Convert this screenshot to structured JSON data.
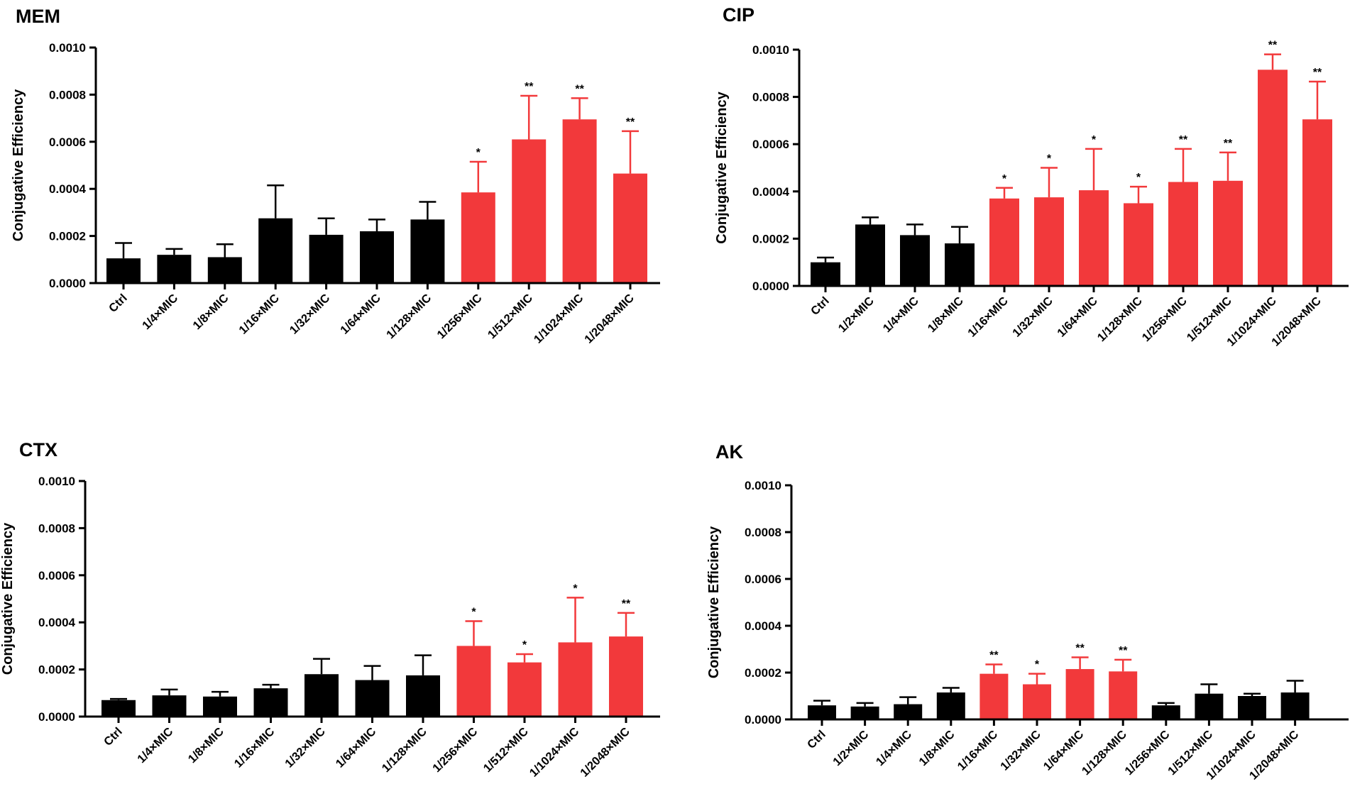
{
  "chart_data": [
    {
      "type": "bar",
      "title": "MEM",
      "xlabel": "",
      "ylabel": "Conjugative Efficiency",
      "ylim": [
        0,
        0.001
      ],
      "yticks": [
        "0.0000",
        "0.0002",
        "0.0004",
        "0.0006",
        "0.0008",
        "0.0010"
      ],
      "categories": [
        "Ctrl",
        "1/4×MIC",
        "1/8×MIC",
        "1/16×MIC",
        "1/32×MIC",
        "1/64×MIC",
        "1/128×MIC",
        "1/256×MIC",
        "1/512×MIC",
        "1/1024×MIC",
        "1/2048×MIC"
      ],
      "values": [
        0.000105,
        0.00012,
        0.00011,
        0.000275,
        0.000205,
        0.00022,
        0.00027,
        0.000385,
        0.00061,
        0.000695,
        0.000465
      ],
      "errors": [
        6.5e-05,
        2.5e-05,
        5.5e-05,
        0.00014,
        7e-05,
        5e-05,
        7.5e-05,
        0.00013,
        0.000185,
        9e-05,
        0.00018
      ],
      "significance": [
        "",
        "",
        "",
        "",
        "",
        "",
        "",
        "*",
        "**",
        "**",
        "**"
      ],
      "bar_colors": [
        "#000000",
        "#000000",
        "#000000",
        "#000000",
        "#000000",
        "#000000",
        "#000000",
        "#f2393b",
        "#f2393b",
        "#f2393b",
        "#f2393b"
      ]
    },
    {
      "type": "bar",
      "title": "CIP",
      "xlabel": "",
      "ylabel": "Conjugative Efficiency",
      "ylim": [
        0,
        0.001
      ],
      "yticks": [
        "0.0000",
        "0.0002",
        "0.0004",
        "0.0006",
        "0.0008",
        "0.0010"
      ],
      "categories": [
        "Ctrl",
        "1/2×MIC",
        "1/4×MIC",
        "1/8×MIC",
        "1/16×MIC",
        "1/32×MIC",
        "1/64×MIC",
        "1/128×MIC",
        "1/256×MIC",
        "1/512×MIC",
        "1/1024×MIC",
        "1/2048×MIC"
      ],
      "values": [
        0.0001,
        0.00026,
        0.000215,
        0.00018,
        0.00037,
        0.000375,
        0.000405,
        0.00035,
        0.00044,
        0.000445,
        0.000915,
        0.000705
      ],
      "errors": [
        2e-05,
        3e-05,
        4.5e-05,
        7e-05,
        4.5e-05,
        0.000125,
        0.000175,
        7e-05,
        0.00014,
        0.00012,
        6.5e-05,
        0.00016
      ],
      "significance": [
        "",
        "",
        "",
        "",
        "*",
        "*",
        "*",
        "*",
        "**",
        "**",
        "**",
        "**"
      ],
      "bar_colors": [
        "#000000",
        "#000000",
        "#000000",
        "#000000",
        "#f2393b",
        "#f2393b",
        "#f2393b",
        "#f2393b",
        "#f2393b",
        "#f2393b",
        "#f2393b",
        "#f2393b"
      ]
    },
    {
      "type": "bar",
      "title": "CTX",
      "xlabel": "",
      "ylabel": "Conjugative Efficiency",
      "ylim": [
        0,
        0.001
      ],
      "yticks": [
        "0.0000",
        "0.0002",
        "0.0004",
        "0.0006",
        "0.0008",
        "0.0010"
      ],
      "categories": [
        "Ctrl",
        "1/4×MIC",
        "1/8×MIC",
        "1/16×MIC",
        "1/32×MIC",
        "1/64×MIC",
        "1/128×MIC",
        "1/256×MIC",
        "1/512×MIC",
        "1/1024×MIC",
        "1/2048×MIC"
      ],
      "values": [
        7e-05,
        9e-05,
        8.5e-05,
        0.00012,
        0.00018,
        0.000155,
        0.000175,
        0.0003,
        0.00023,
        0.000315,
        0.00034
      ],
      "errors": [
        5e-06,
        2.5e-05,
        2e-05,
        1.5e-05,
        6.5e-05,
        6e-05,
        8.5e-05,
        0.000105,
        3.5e-05,
        0.00019,
        0.0001
      ],
      "significance": [
        "",
        "",
        "",
        "",
        "",
        "",
        "",
        "*",
        "*",
        "*",
        "**"
      ],
      "bar_colors": [
        "#000000",
        "#000000",
        "#000000",
        "#000000",
        "#000000",
        "#000000",
        "#000000",
        "#f2393b",
        "#f2393b",
        "#f2393b",
        "#f2393b"
      ]
    },
    {
      "type": "bar",
      "title": "AK",
      "xlabel": "",
      "ylabel": "Conjugative Efficiency",
      "ylim": [
        0,
        0.001
      ],
      "yticks": [
        "0.0000",
        "0.0002",
        "0.0004",
        "0.0006",
        "0.0008",
        "0.0010"
      ],
      "categories": [
        "Ctrl",
        "1/2×MIC",
        "1/4×MIC",
        "1/8×MIC",
        "1/16×MIC",
        "1/32×MIC",
        "1/64×MIC",
        "1/128×MIC",
        "1/256×MIC",
        "1/512×MIC",
        "1/1024×MIC",
        "1/2048×MIC"
      ],
      "values": [
        6e-05,
        5.5e-05,
        6.5e-05,
        0.000115,
        0.000195,
        0.00015,
        0.000215,
        0.000205,
        6e-05,
        0.00011,
        0.0001,
        0.000115
      ],
      "errors": [
        2e-05,
        1.5e-05,
        3e-05,
        2e-05,
        4e-05,
        4.5e-05,
        5e-05,
        5e-05,
        1e-05,
        4e-05,
        1e-05,
        5e-05
      ],
      "significance": [
        "",
        "",
        "",
        "",
        "**",
        "*",
        "**",
        "**",
        "",
        "",
        "",
        ""
      ],
      "bar_colors": [
        "#000000",
        "#000000",
        "#000000",
        "#000000",
        "#f2393b",
        "#f2393b",
        "#f2393b",
        "#f2393b",
        "#000000",
        "#000000",
        "#000000",
        "#000000"
      ]
    }
  ]
}
